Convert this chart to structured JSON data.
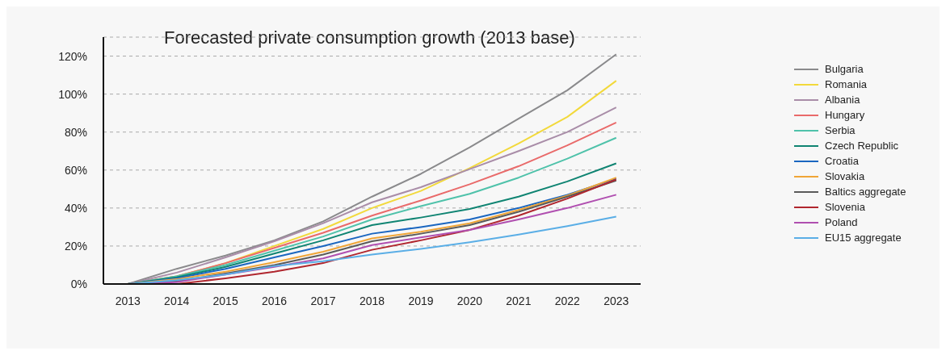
{
  "chart_data": {
    "type": "line",
    "title": "Forecasted private consumption growth (2013 base)",
    "categories": [
      "2013",
      "2014",
      "2015",
      "2016",
      "2017",
      "2018",
      "2019",
      "2020",
      "2021",
      "2022",
      "2023"
    ],
    "series": [
      {
        "name": "Bulgaria",
        "color": "#8a8a8c",
        "values": [
          0,
          8,
          15,
          23,
          33,
          46,
          58,
          72,
          87,
          102,
          121
        ]
      },
      {
        "name": "Romania",
        "color": "#f2d93b",
        "values": [
          0,
          4,
          11,
          20,
          29,
          40,
          49,
          61,
          74,
          88,
          107
        ]
      },
      {
        "name": "Albania",
        "color": "#a98da8",
        "values": [
          0,
          6,
          14,
          22.5,
          32,
          43,
          51,
          60.5,
          70,
          80,
          93
        ]
      },
      {
        "name": "Hungary",
        "color": "#e96a6a",
        "values": [
          0,
          4,
          11,
          19,
          27,
          36,
          44,
          52.5,
          62,
          73,
          85
        ]
      },
      {
        "name": "Serbia",
        "color": "#4fc2aa",
        "values": [
          0,
          4,
          10,
          17.5,
          25,
          34,
          41,
          47.5,
          56,
          66,
          77
        ]
      },
      {
        "name": "Czech Republic",
        "color": "#0f8472",
        "values": [
          0,
          3.5,
          9,
          16,
          23,
          31,
          35,
          39.5,
          46,
          54,
          63.5
        ]
      },
      {
        "name": "Croatia",
        "color": "#1a66c0",
        "values": [
          0,
          3,
          8,
          14,
          20,
          26.5,
          30,
          34,
          40,
          47,
          55.5
        ]
      },
      {
        "name": "Slovakia",
        "color": "#f0a536",
        "values": [
          0,
          2.5,
          6.5,
          11.5,
          17,
          24,
          27.5,
          32,
          39,
          46.5,
          56
        ]
      },
      {
        "name": "Baltics aggregate",
        "color": "#5a5a5a",
        "values": [
          0,
          1.5,
          5.5,
          10,
          15.5,
          22.5,
          26.5,
          31,
          38,
          46,
          54.5
        ]
      },
      {
        "name": "Slovenia",
        "color": "#b0262e",
        "values": [
          0,
          0,
          3,
          6.5,
          11,
          18,
          23,
          28.5,
          36,
          45,
          55
        ]
      },
      {
        "name": "Poland",
        "color": "#b04fb0",
        "values": [
          0,
          1,
          5,
          9,
          13.5,
          20.5,
          24.5,
          28.5,
          34,
          40,
          47
        ]
      },
      {
        "name": "EU15 aggregate",
        "color": "#5aaee6",
        "values": [
          0,
          2,
          5,
          9.5,
          12,
          15.5,
          18.5,
          22,
          26,
          30.5,
          35.5
        ]
      }
    ],
    "ylim": [
      0,
      130
    ],
    "yticks": [
      {
        "value": 0,
        "label": "0%"
      },
      {
        "value": 20,
        "label": "20%"
      },
      {
        "value": 40,
        "label": "40%"
      },
      {
        "value": 60,
        "label": "60%"
      },
      {
        "value": 80,
        "label": "80%"
      },
      {
        "value": 100,
        "label": "100%"
      },
      {
        "value": 120,
        "label": "120%"
      }
    ],
    "grid": "y",
    "legend": "right",
    "marker": "none",
    "line_style": "solid"
  }
}
